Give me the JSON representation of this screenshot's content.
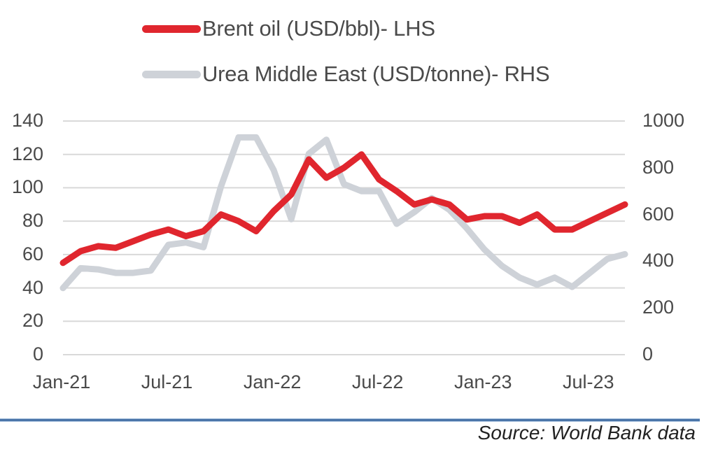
{
  "legend": [
    {
      "label": "Brent oil (USD/bbl)- LHS",
      "color": "#e0262e"
    },
    {
      "label": "Urea Middle East (USD/tonne)- RHS",
      "color": "#ced2d8"
    }
  ],
  "source": "Source: World Bank data",
  "colors": {
    "brent": "#e0262e",
    "urea": "#ced2d8",
    "grid": "#d9d9d9",
    "rule": "#4a74a8"
  },
  "chart_data": {
    "type": "line",
    "title": "",
    "xlabel": "",
    "ylabel_left": "Brent oil (USD/bbl)",
    "ylabel_right": "Urea Middle East (USD/tonne)",
    "x_ticks": [
      "Jan-21",
      "Jul-21",
      "Jan-22",
      "Jul-22",
      "Jan-23",
      "Jul-23"
    ],
    "y_left_ticks": [
      0,
      20,
      40,
      60,
      80,
      100,
      120,
      140
    ],
    "y_right_ticks": [
      0,
      200,
      400,
      600,
      800,
      1000
    ],
    "ylim_left": [
      0,
      140
    ],
    "ylim_right": [
      0,
      1000
    ],
    "grid": true,
    "legend_position": "top",
    "x": [
      "Jan-21",
      "Feb-21",
      "Mar-21",
      "Apr-21",
      "May-21",
      "Jun-21",
      "Jul-21",
      "Aug-21",
      "Sep-21",
      "Oct-21",
      "Nov-21",
      "Dec-21",
      "Jan-22",
      "Feb-22",
      "Mar-22",
      "Apr-22",
      "May-22",
      "Jun-22",
      "Jul-22",
      "Aug-22",
      "Sep-22",
      "Oct-22",
      "Nov-22",
      "Dec-22",
      "Jan-23",
      "Feb-23",
      "Mar-23",
      "Apr-23",
      "May-23",
      "Jun-23",
      "Jul-23",
      "Aug-23",
      "Sep-23"
    ],
    "series": [
      {
        "name": "Brent oil (USD/bbl)- LHS",
        "axis": "left",
        "values": [
          55,
          62,
          65,
          64,
          68,
          72,
          75,
          71,
          74,
          84,
          80,
          74,
          86,
          96,
          117,
          106,
          112,
          120,
          105,
          98,
          90,
          93,
          90,
          81,
          83,
          83,
          79,
          84,
          75,
          75,
          80,
          85,
          90
        ]
      },
      {
        "name": "Urea Middle East (USD/tonne)- RHS",
        "axis": "right",
        "values": [
          285,
          370,
          365,
          350,
          350,
          360,
          470,
          480,
          460,
          720,
          930,
          930,
          790,
          580,
          860,
          920,
          730,
          700,
          700,
          560,
          610,
          670,
          620,
          540,
          450,
          380,
          330,
          300,
          330,
          290,
          350,
          410,
          430
        ]
      }
    ]
  }
}
